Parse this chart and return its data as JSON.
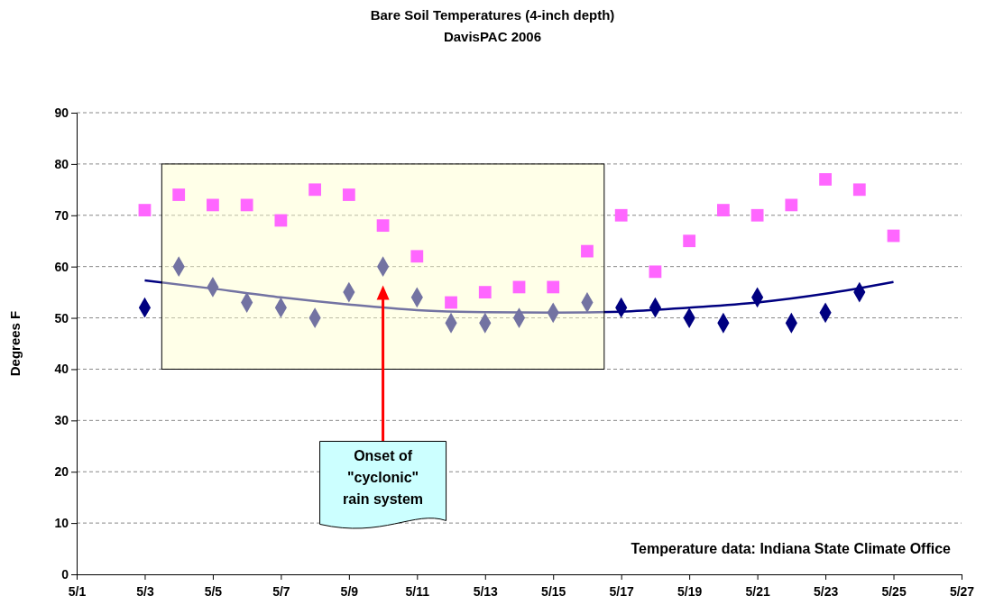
{
  "chart_data": {
    "type": "scatter",
    "title": "Bare Soil Temperatures (4-inch depth)",
    "subtitle": "DavisPAC 2006",
    "ylabel": "Degrees F",
    "x": [
      "--05-03",
      "--05-04",
      "--05-05",
      "--05-06",
      "--05-07",
      "--05-08",
      "--05-09",
      "--05-10",
      "--05-11",
      "--05-12",
      "--05-13",
      "--05-14",
      "--05-15",
      "--05-16",
      "--05-17",
      "--05-18",
      "--05-19",
      "--05-20",
      "--05-21",
      "--05-22",
      "--05-23",
      "--05-24",
      "--05-25"
    ],
    "series": [
      {
        "color": "#ff66ff",
        "marker": "square",
        "values": [
          71,
          74,
          72,
          72,
          69,
          75,
          74,
          68,
          62,
          53,
          55,
          56,
          56,
          63,
          70,
          59,
          65,
          71,
          70,
          72,
          77,
          75,
          66
        ]
      },
      {
        "color": "#000080",
        "marker": "diamond",
        "values": [
          52,
          60,
          56,
          53,
          52,
          50,
          55,
          60,
          54,
          49,
          49,
          50,
          51,
          53,
          52,
          52,
          50,
          49,
          54,
          49,
          51,
          55,
          null
        ]
      },
      {
        "type": "line",
        "color": "#000080",
        "marker": "none",
        "x": [
          "--05-03",
          "--05-05",
          "--05-07",
          "--05-09",
          "--05-11",
          "--05-13",
          "--05-15",
          "--05-17",
          "--05-19",
          "--05-21",
          "--05-23",
          "--05-25"
        ],
        "values": [
          57.3,
          55.7,
          54,
          52.6,
          51.5,
          51.1,
          51,
          51.2,
          52,
          53,
          54.7,
          57
        ]
      }
    ],
    "xlim": [
      "--05-01",
      "--05-27"
    ],
    "xticks": [
      {
        "value": "--05-01",
        "label": "5/1"
      },
      {
        "value": "--05-03",
        "label": "5/3"
      },
      {
        "value": "--05-05",
        "label": "5/5"
      },
      {
        "value": "--05-07",
        "label": "5/7"
      },
      {
        "value": "--05-09",
        "label": "5/9"
      },
      {
        "value": "--05-11",
        "label": "5/11"
      },
      {
        "value": "--05-13",
        "label": "5/13"
      },
      {
        "value": "--05-15",
        "label": "5/15"
      },
      {
        "value": "--05-17",
        "label": "5/17"
      },
      {
        "value": "--05-19",
        "label": "5/19"
      },
      {
        "value": "--05-21",
        "label": "5/21"
      },
      {
        "value": "--05-23",
        "label": "5/23"
      },
      {
        "value": "--05-25",
        "label": "5/25"
      },
      {
        "value": "--05-27",
        "label": "5/27"
      }
    ],
    "ylim": [
      0,
      90
    ],
    "yticks": [
      0,
      10,
      20,
      30,
      40,
      50,
      60,
      70,
      80,
      90
    ],
    "grid": "y",
    "annotations": [
      "Onset of\n\"cyclonic\"\nrain system",
      "Temperature data: Indiana State Climate Office"
    ]
  }
}
